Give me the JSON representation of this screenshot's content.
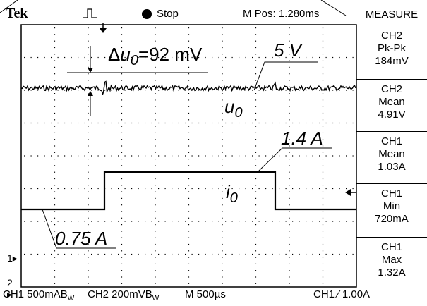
{
  "header": {
    "brand": "Tek",
    "trigger_icon": "pulse-trigger-icon",
    "run_state": "Stop",
    "run_icon": "filled-circle-icon",
    "m_pos": "M Pos: 1.280ms"
  },
  "measure": {
    "title": "MEASURE",
    "items": [
      {
        "source": "CH2",
        "type": "Pk-Pk",
        "value": "184mV"
      },
      {
        "source": "CH2",
        "type": "Mean",
        "value": "4.91V"
      },
      {
        "source": "CH1",
        "type": "Mean",
        "value": "1.03A"
      },
      {
        "source": "CH1",
        "type": "Min",
        "value": "720mA"
      },
      {
        "source": "CH1",
        "type": "Max",
        "value": "1.32A"
      }
    ]
  },
  "status_bar": {
    "ch1": "CH1  500mAB",
    "ch1_suffix": "W",
    "ch2": "CH2  200mVB",
    "ch2_suffix": "W",
    "timebase": "M 500µs",
    "trigger": "CH1 ∕ 1.00A"
  },
  "annotations": {
    "delta_prefix": "Δ",
    "delta_var": "u",
    "delta_sub": "0",
    "delta_value": "=92 mV",
    "u0_var": "u",
    "u0_sub": "0",
    "voltage": "5 V",
    "current_high": "1.4 A",
    "i0_var": "i",
    "i0_sub": "0",
    "current_low": "0.75 A"
  },
  "markers": {
    "ch1": "1",
    "ch2": "2"
  },
  "colors": {
    "trace": "#000000",
    "background": "#ffffff",
    "grid": "#000000"
  }
}
